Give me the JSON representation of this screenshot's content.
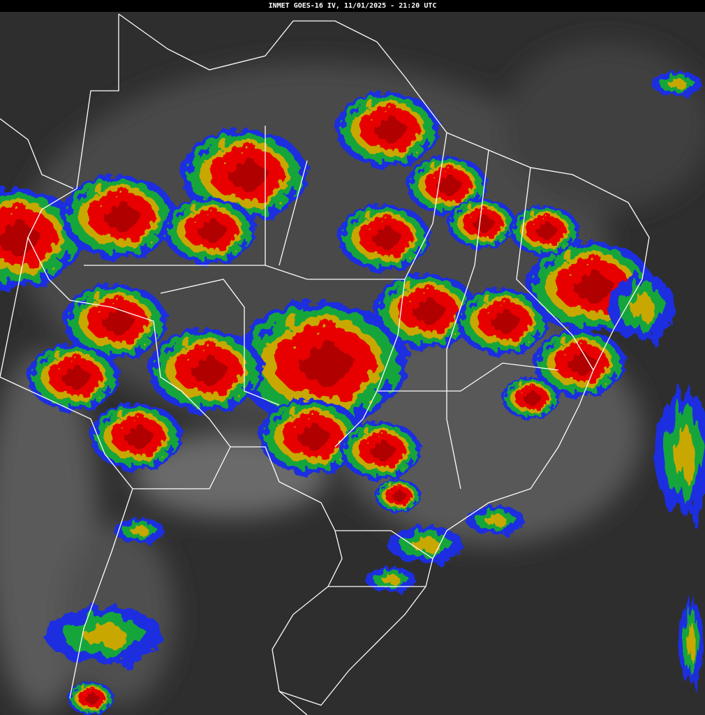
{
  "header": {
    "title": "INMET GOES-16 IV, 11/01/2025 - 21:20 UTC"
  }
}
